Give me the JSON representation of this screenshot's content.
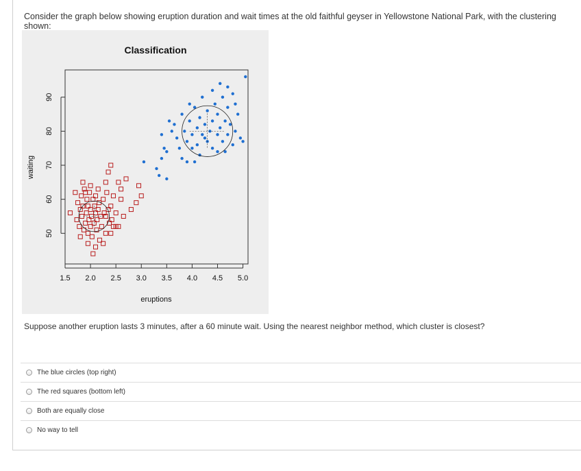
{
  "question": {
    "text": "Consider the graph below showing eruption duration and wait times at the old faithful geyser in Yellowstone National Park, with the clustering shown:"
  },
  "prompt": {
    "text": "Suppose another eruption lasts 3 minutes, after a 60 minute wait. Using the nearest neighbor method, which cluster is closest?"
  },
  "options": [
    {
      "label": "The blue circles (top right)"
    },
    {
      "label": "The red squares (bottom left)"
    },
    {
      "label": "Both are equally close"
    },
    {
      "label": "No way to tell"
    }
  ],
  "chart_data": {
    "type": "scatter",
    "title": "Classification",
    "xlabel": "eruptions",
    "ylabel": "waiting",
    "xlim": [
      1.5,
      5.1
    ],
    "ylim": [
      41,
      98
    ],
    "xticks": [
      "1.5",
      "2.0",
      "2.5",
      "3.0",
      "3.5",
      "4.0",
      "4.5",
      "5.0"
    ],
    "yticks": [
      "50",
      "60",
      "70",
      "80",
      "90"
    ],
    "grid": false,
    "colors": {
      "cluster_1": "#1f6fd1",
      "cluster_2": "#b81c1c"
    },
    "series": [
      {
        "marker": "square",
        "color": "#b81c1c",
        "points": [
          [
            1.6,
            56
          ],
          [
            1.7,
            62
          ],
          [
            1.73,
            54
          ],
          [
            1.75,
            59
          ],
          [
            1.78,
            52
          ],
          [
            1.8,
            57
          ],
          [
            1.8,
            49
          ],
          [
            1.82,
            61
          ],
          [
            1.83,
            55
          ],
          [
            1.85,
            58
          ],
          [
            1.87,
            51
          ],
          [
            1.88,
            63
          ],
          [
            1.9,
            53
          ],
          [
            1.92,
            56
          ],
          [
            1.93,
            60
          ],
          [
            1.95,
            50
          ],
          [
            1.95,
            58
          ],
          [
            1.97,
            54
          ],
          [
            1.98,
            62
          ],
          [
            2.0,
            57
          ],
          [
            2.0,
            52
          ],
          [
            2.02,
            55
          ],
          [
            2.03,
            49
          ],
          [
            2.05,
            60
          ],
          [
            2.07,
            53
          ],
          [
            2.08,
            58
          ],
          [
            2.1,
            56
          ],
          [
            2.1,
            61
          ],
          [
            2.12,
            51
          ],
          [
            2.13,
            54
          ],
          [
            2.15,
            57
          ],
          [
            2.17,
            59
          ],
          [
            2.18,
            48
          ],
          [
            2.2,
            55
          ],
          [
            2.22,
            52
          ],
          [
            2.25,
            60
          ],
          [
            2.27,
            56
          ],
          [
            2.3,
            50
          ],
          [
            2.32,
            62
          ],
          [
            2.35,
            57
          ],
          [
            2.37,
            53
          ],
          [
            2.4,
            58
          ],
          [
            2.42,
            54
          ],
          [
            2.45,
            61
          ],
          [
            2.5,
            52
          ],
          [
            2.55,
            65
          ],
          [
            2.6,
            60
          ],
          [
            2.7,
            66
          ],
          [
            2.8,
            57
          ],
          [
            2.9,
            59
          ],
          [
            2.95,
            64
          ],
          [
            3.0,
            61
          ],
          [
            2.1,
            46
          ],
          [
            1.85,
            65
          ],
          [
            2.0,
            64
          ],
          [
            1.95,
            47
          ],
          [
            2.25,
            47
          ],
          [
            2.4,
            50
          ],
          [
            2.35,
            68
          ],
          [
            2.3,
            65
          ],
          [
            2.05,
            44
          ],
          [
            2.5,
            56
          ],
          [
            2.6,
            63
          ],
          [
            2.4,
            70
          ],
          [
            2.65,
            55
          ],
          [
            2.45,
            52
          ],
          [
            2.15,
            63
          ],
          [
            1.9,
            62
          ],
          [
            2.55,
            52
          ],
          [
            2.3,
            55
          ]
        ]
      },
      {
        "marker": "circle",
        "color": "#1f6fd1",
        "points": [
          [
            3.05,
            71
          ],
          [
            3.3,
            69
          ],
          [
            3.35,
            67
          ],
          [
            3.4,
            72
          ],
          [
            3.5,
            66
          ],
          [
            3.5,
            74
          ],
          [
            3.6,
            80
          ],
          [
            3.4,
            79
          ],
          [
            3.7,
            78
          ],
          [
            3.75,
            75
          ],
          [
            3.8,
            85
          ],
          [
            3.85,
            80
          ],
          [
            3.9,
            77
          ],
          [
            3.95,
            83
          ],
          [
            4.0,
            79
          ],
          [
            4.0,
            75
          ],
          [
            4.05,
            87
          ],
          [
            4.1,
            81
          ],
          [
            4.1,
            76
          ],
          [
            4.15,
            84
          ],
          [
            4.2,
            79
          ],
          [
            4.2,
            90
          ],
          [
            4.25,
            82
          ],
          [
            4.3,
            77
          ],
          [
            4.3,
            86
          ],
          [
            4.35,
            80
          ],
          [
            4.4,
            83
          ],
          [
            4.4,
            75
          ],
          [
            4.45,
            88
          ],
          [
            4.5,
            79
          ],
          [
            4.5,
            85
          ],
          [
            4.55,
            81
          ],
          [
            4.6,
            77
          ],
          [
            4.6,
            90
          ],
          [
            4.65,
            83
          ],
          [
            4.7,
            79
          ],
          [
            4.7,
            87
          ],
          [
            4.75,
            82
          ],
          [
            4.8,
            76
          ],
          [
            4.8,
            91
          ],
          [
            4.85,
            80
          ],
          [
            4.9,
            85
          ],
          [
            4.95,
            78
          ],
          [
            5.0,
            77
          ],
          [
            5.05,
            96
          ],
          [
            4.55,
            94
          ],
          [
            4.4,
            92
          ],
          [
            4.7,
            93
          ],
          [
            3.55,
            83
          ],
          [
            3.45,
            75
          ],
          [
            3.9,
            71
          ],
          [
            4.05,
            71
          ],
          [
            3.65,
            82
          ],
          [
            3.95,
            88
          ],
          [
            4.25,
            78
          ],
          [
            4.5,
            74
          ],
          [
            4.85,
            88
          ],
          [
            3.8,
            72
          ],
          [
            4.15,
            73
          ],
          [
            4.65,
            74
          ]
        ]
      }
    ],
    "annotations": [
      {
        "shape": "circle",
        "center": [
          2.07,
          55
        ],
        "radius_x": 0.3
      },
      {
        "shape": "circle",
        "center": [
          4.3,
          80
        ],
        "radius_x": 0.5
      }
    ]
  }
}
